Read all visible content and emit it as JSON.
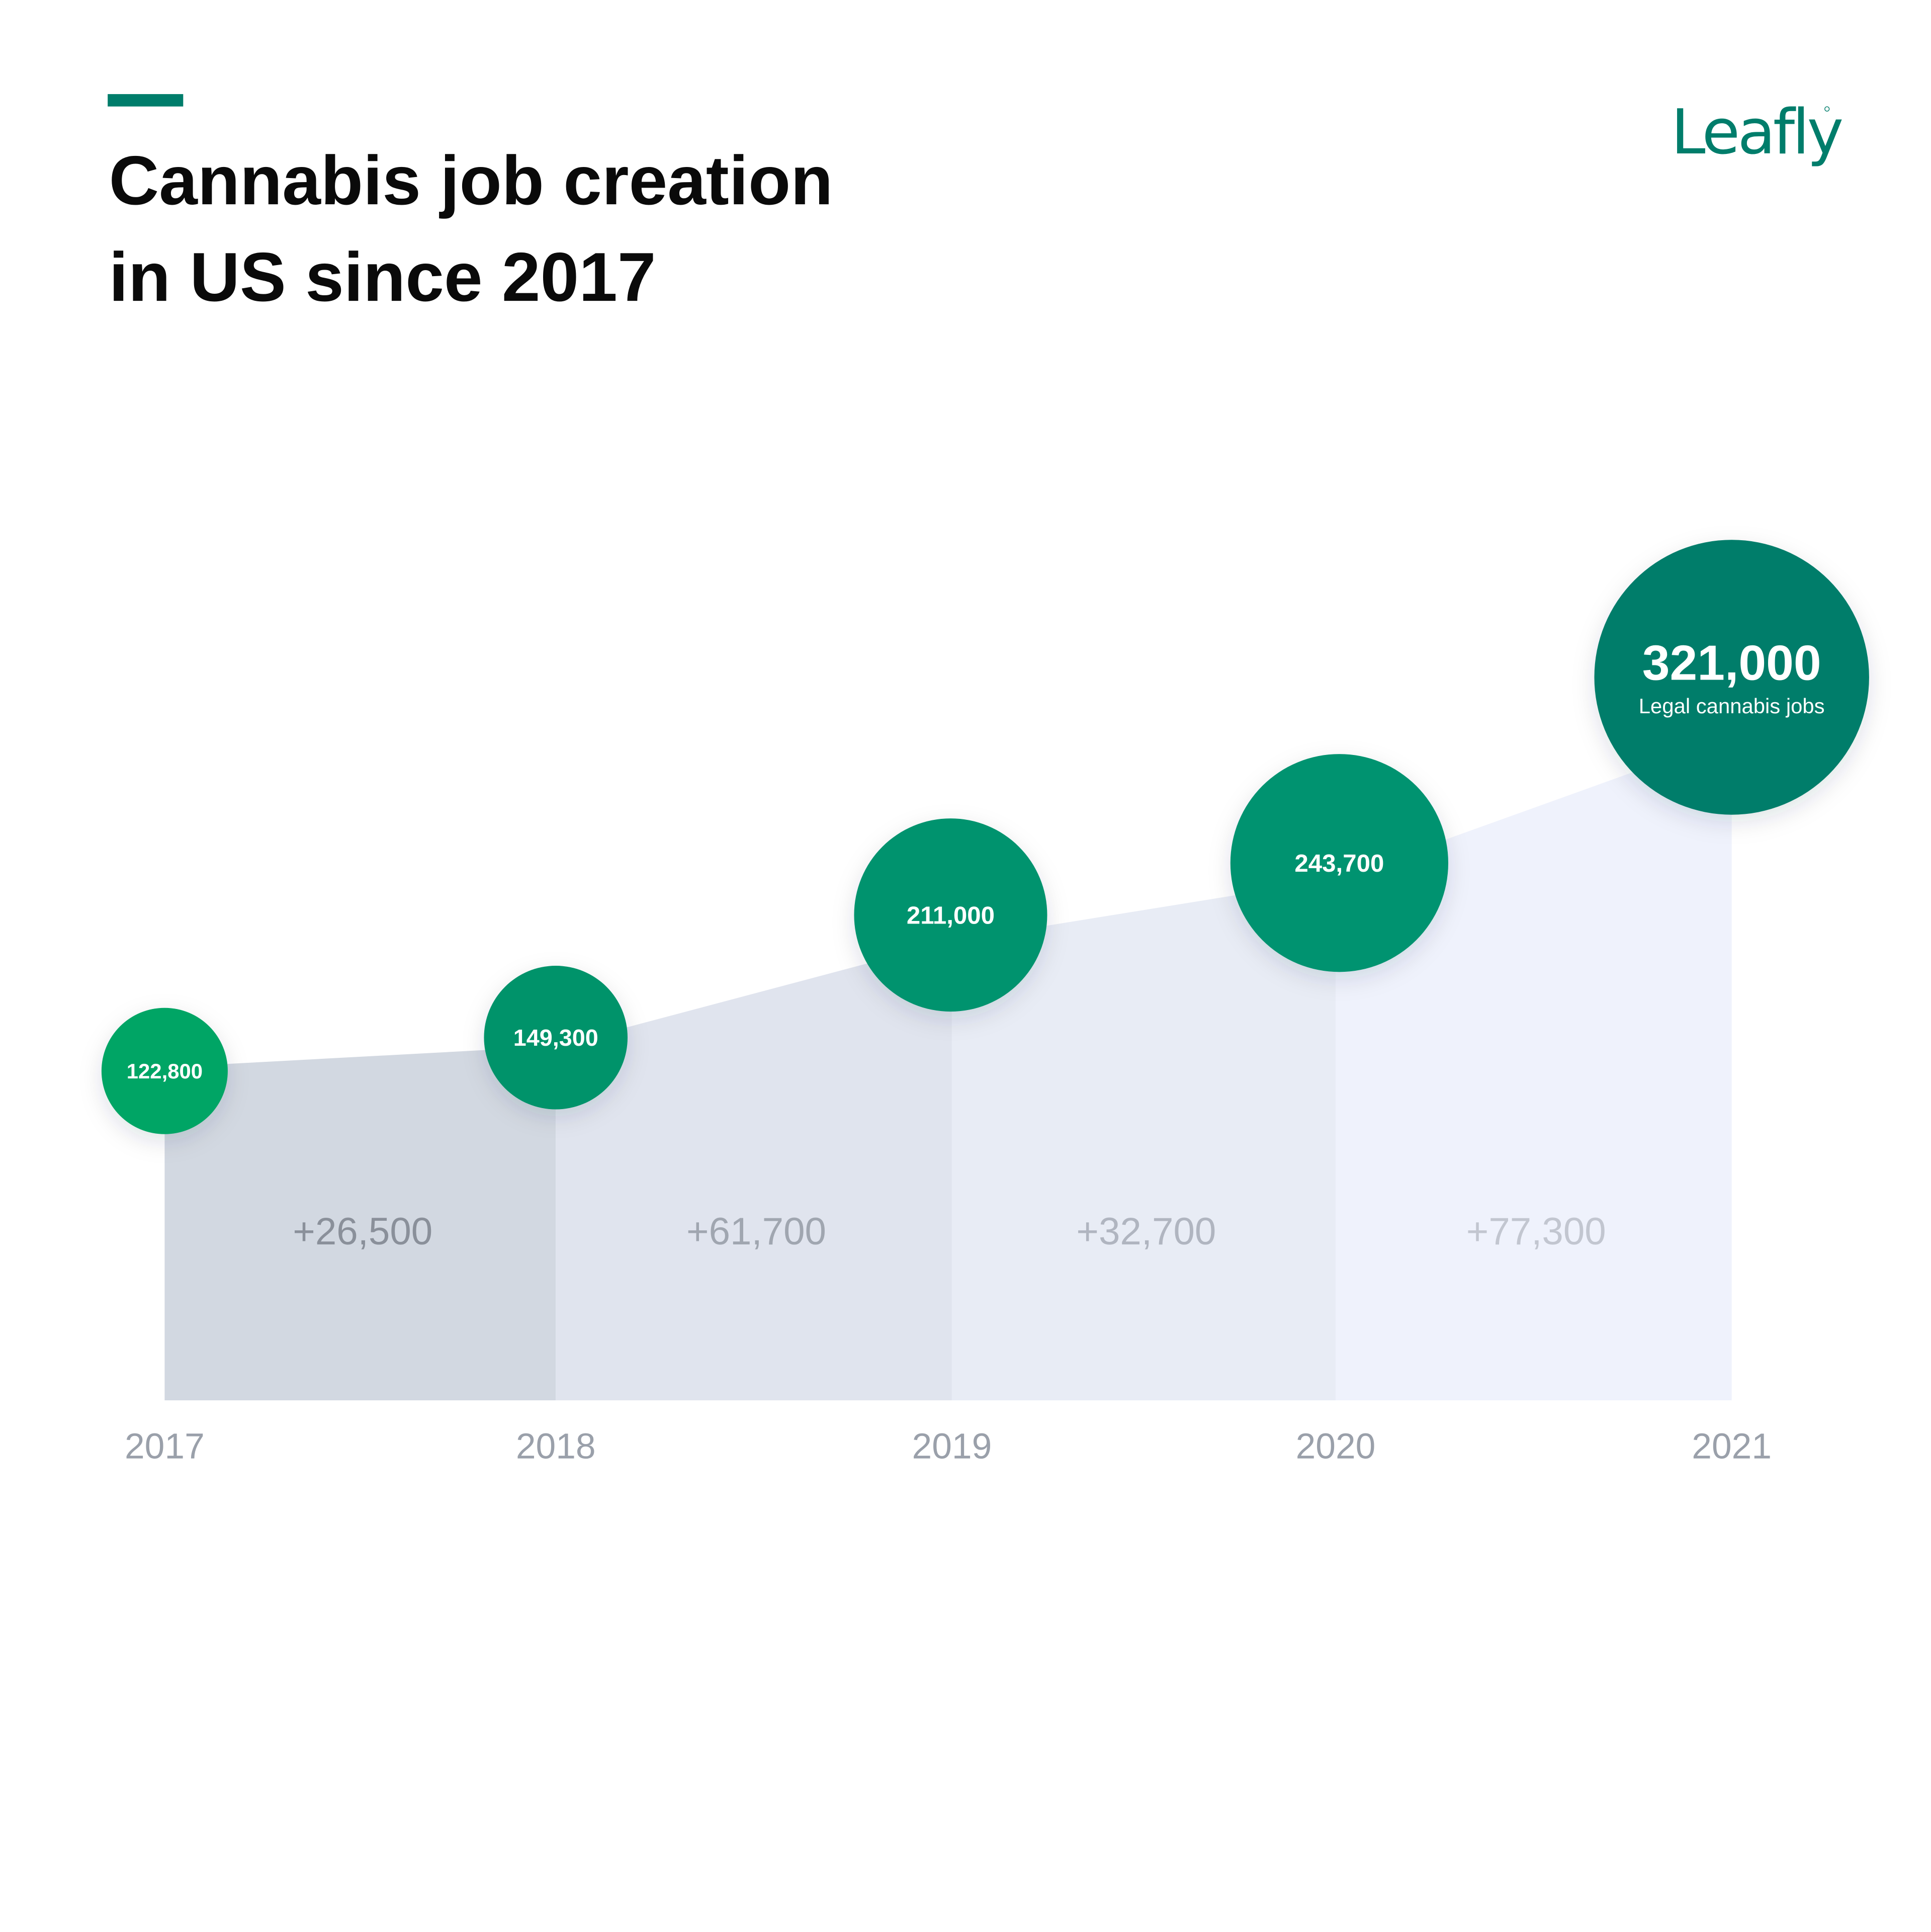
{
  "header": {
    "title_line1": "Cannabis job creation",
    "title_line2": "in US since 2017",
    "logo_text": "Leafly",
    "accent_color": "#007d6b"
  },
  "chart_data": {
    "type": "area",
    "title": "Cannabis job creation in US since 2017",
    "categories": [
      "2017",
      "2018",
      "2019",
      "2020",
      "2021"
    ],
    "values": [
      122800,
      149300,
      211000,
      243700,
      321000
    ],
    "value_labels": [
      "122,800",
      "149,300",
      "211,000",
      "243,700",
      "321,000"
    ],
    "highlight_caption": "Legal cannabis jobs",
    "increments": [
      "+26,500",
      "+61,700",
      "+32,700",
      "+77,300"
    ],
    "increment_values": [
      26500,
      61700,
      32700,
      77300
    ],
    "bubble_colors": [
      "#04a565",
      "#02936b",
      "#02936e",
      "#029370",
      "#007d6b"
    ],
    "segment_colors": [
      "#d2d8e1",
      "#e0e4ee",
      "#e8ecf5",
      "#eff2fc"
    ],
    "increment_colors": [
      "#8a909a",
      "#a0a6b0",
      "#b0b5c0",
      "#c2c6d0"
    ],
    "grid": false,
    "legend": "none"
  }
}
